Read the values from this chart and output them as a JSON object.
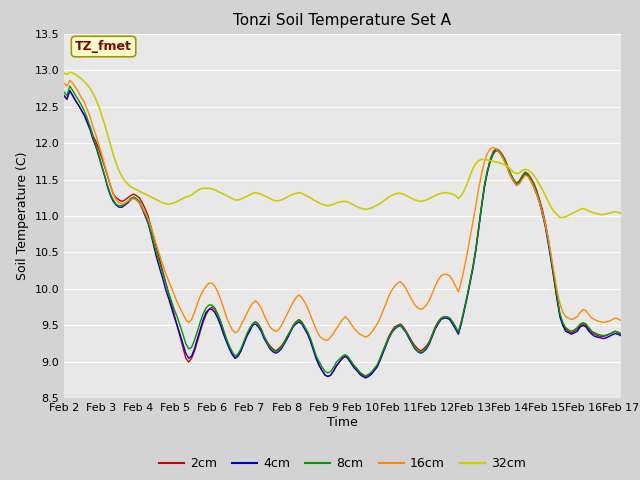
{
  "title": "Tonzi Soil Temperature Set A",
  "xlabel": "Time",
  "ylabel": "Soil Temperature (C)",
  "annotation_text": "TZ_fmet",
  "annotation_color": "#8B0000",
  "annotation_bg": "#FFFFCC",
  "annotation_border": "#999900",
  "ylim": [
    8.5,
    13.5
  ],
  "yticks": [
    8.5,
    9.0,
    9.5,
    10.0,
    10.5,
    11.0,
    11.5,
    12.0,
    12.5,
    13.0,
    13.5
  ],
  "legend_labels": [
    "2cm",
    "4cm",
    "8cm",
    "16cm",
    "32cm"
  ],
  "line_colors": [
    "#CC0000",
    "#0000CC",
    "#009900",
    "#FF8800",
    "#CCCC00"
  ],
  "line_widths": [
    1.0,
    1.0,
    1.0,
    1.0,
    1.2
  ],
  "xtick_labels": [
    "Feb 2",
    "Feb 3",
    "Feb 4",
    "Feb 5",
    "Feb 6",
    "Feb 7",
    "Feb 8",
    "Feb 9",
    "Feb 10",
    "Feb 11",
    "Feb 12",
    "Feb 13",
    "Feb 14",
    "Feb 15",
    "Feb 16",
    "Feb 17"
  ],
  "fig_bg": "#D3D3D3",
  "plot_bg": "#E8E8E8",
  "grid_color": "#FFFFFF",
  "data_2cm": [
    12.65,
    12.6,
    12.72,
    12.65,
    12.58,
    12.52,
    12.45,
    12.38,
    12.3,
    12.22,
    12.1,
    12.02,
    11.92,
    11.8,
    11.68,
    11.55,
    11.42,
    11.3,
    11.25,
    11.22,
    11.2,
    11.22,
    11.25,
    11.28,
    11.3,
    11.28,
    11.25,
    11.18,
    11.1,
    11.0,
    10.85,
    10.7,
    10.55,
    10.4,
    10.25,
    10.1,
    9.95,
    9.8,
    9.65,
    9.5,
    9.35,
    9.2,
    9.05,
    9.0,
    9.05,
    9.15,
    9.28,
    9.42,
    9.55,
    9.65,
    9.72,
    9.75,
    9.72,
    9.65,
    9.55,
    9.42,
    9.3,
    9.2,
    9.12,
    9.05,
    9.08,
    9.15,
    9.25,
    9.35,
    9.45,
    9.52,
    9.55,
    9.52,
    9.45,
    9.35,
    9.28,
    9.22,
    9.18,
    9.15,
    9.18,
    9.22,
    9.28,
    9.35,
    9.42,
    9.5,
    9.55,
    9.58,
    9.55,
    9.48,
    9.4,
    9.3,
    9.18,
    9.05,
    8.95,
    8.88,
    8.82,
    8.8,
    8.82,
    8.88,
    8.95,
    9.0,
    9.05,
    9.08,
    9.05,
    9.0,
    8.95,
    8.9,
    8.85,
    8.82,
    8.8,
    8.82,
    8.85,
    8.9,
    8.95,
    9.05,
    9.15,
    9.25,
    9.35,
    9.42,
    9.48,
    9.5,
    9.52,
    9.48,
    9.42,
    9.35,
    9.28,
    9.22,
    9.18,
    9.15,
    9.18,
    9.22,
    9.28,
    9.38,
    9.48,
    9.55,
    9.6,
    9.62,
    9.62,
    9.6,
    9.55,
    9.48,
    9.4,
    9.55,
    9.72,
    9.9,
    10.1,
    10.3,
    10.55,
    10.85,
    11.15,
    11.42,
    11.62,
    11.78,
    11.88,
    11.92,
    11.9,
    11.85,
    11.78,
    11.68,
    11.58,
    11.5,
    11.45,
    11.48,
    11.55,
    11.6,
    11.58,
    11.52,
    11.45,
    11.35,
    11.22,
    11.08,
    10.9,
    10.68,
    10.42,
    10.15,
    9.88,
    9.65,
    9.52,
    9.45,
    9.42,
    9.4,
    9.42,
    9.45,
    9.5,
    9.52,
    9.5,
    9.45,
    9.4,
    9.38,
    9.36,
    9.35,
    9.35,
    9.36,
    9.38,
    9.4,
    9.42,
    9.4,
    9.38
  ],
  "data_4cm": [
    12.65,
    12.6,
    12.72,
    12.65,
    12.58,
    12.52,
    12.45,
    12.38,
    12.28,
    12.18,
    12.05,
    11.95,
    11.82,
    11.68,
    11.55,
    11.4,
    11.28,
    11.2,
    11.15,
    11.12,
    11.12,
    11.15,
    11.18,
    11.22,
    11.25,
    11.22,
    11.18,
    11.1,
    11.0,
    10.9,
    10.75,
    10.58,
    10.42,
    10.28,
    10.15,
    10.0,
    9.88,
    9.75,
    9.62,
    9.5,
    9.38,
    9.25,
    9.12,
    9.05,
    9.08,
    9.18,
    9.32,
    9.45,
    9.58,
    9.68,
    9.72,
    9.72,
    9.68,
    9.6,
    9.5,
    9.38,
    9.28,
    9.18,
    9.1,
    9.05,
    9.08,
    9.15,
    9.25,
    9.35,
    9.42,
    9.5,
    9.52,
    9.48,
    9.42,
    9.32,
    9.25,
    9.18,
    9.14,
    9.12,
    9.14,
    9.18,
    9.25,
    9.32,
    9.4,
    9.48,
    9.52,
    9.55,
    9.52,
    9.45,
    9.38,
    9.28,
    9.16,
    9.04,
    8.95,
    8.88,
    8.82,
    8.8,
    8.82,
    8.88,
    8.95,
    9.0,
    9.05,
    9.08,
    9.04,
    8.98,
    8.92,
    8.88,
    8.83,
    8.8,
    8.78,
    8.8,
    8.83,
    8.88,
    8.93,
    9.02,
    9.12,
    9.22,
    9.32,
    9.4,
    9.45,
    9.48,
    9.5,
    9.45,
    9.4,
    9.32,
    9.25,
    9.18,
    9.14,
    9.12,
    9.14,
    9.18,
    9.25,
    9.35,
    9.45,
    9.52,
    9.58,
    9.6,
    9.6,
    9.58,
    9.52,
    9.45,
    9.38,
    9.52,
    9.7,
    9.88,
    10.08,
    10.28,
    10.52,
    10.82,
    11.12,
    11.4,
    11.6,
    11.75,
    11.85,
    11.9,
    11.88,
    11.82,
    11.75,
    11.65,
    11.55,
    11.48,
    11.42,
    11.45,
    11.52,
    11.58,
    11.55,
    11.48,
    11.4,
    11.3,
    11.18,
    11.02,
    10.85,
    10.62,
    10.38,
    10.12,
    9.86,
    9.62,
    9.5,
    9.42,
    9.4,
    9.38,
    9.4,
    9.42,
    9.48,
    9.5,
    9.48,
    9.42,
    9.38,
    9.35,
    9.34,
    9.33,
    9.32,
    9.33,
    9.35,
    9.37,
    9.39,
    9.38,
    9.36
  ],
  "data_8cm": [
    12.7,
    12.65,
    12.78,
    12.72,
    12.65,
    12.59,
    12.52,
    12.44,
    12.34,
    12.22,
    12.08,
    11.97,
    11.84,
    11.7,
    11.56,
    11.42,
    11.3,
    11.22,
    11.16,
    11.14,
    11.14,
    11.16,
    11.2,
    11.24,
    11.26,
    11.24,
    11.2,
    11.12,
    11.02,
    10.92,
    10.78,
    10.62,
    10.48,
    10.35,
    10.22,
    10.08,
    9.96,
    9.84,
    9.72,
    9.62,
    9.5,
    9.38,
    9.25,
    9.18,
    9.2,
    9.3,
    9.42,
    9.55,
    9.66,
    9.74,
    9.78,
    9.78,
    9.74,
    9.66,
    9.56,
    9.44,
    9.32,
    9.22,
    9.14,
    9.08,
    9.11,
    9.18,
    9.28,
    9.38,
    9.46,
    9.52,
    9.55,
    9.51,
    9.45,
    9.35,
    9.27,
    9.2,
    9.16,
    9.14,
    9.16,
    9.2,
    9.27,
    9.35,
    9.42,
    9.49,
    9.54,
    9.57,
    9.54,
    9.48,
    9.41,
    9.32,
    9.2,
    9.08,
    9.0,
    8.93,
    8.87,
    8.85,
    8.87,
    8.93,
    9.0,
    9.04,
    9.08,
    9.1,
    9.07,
    9.01,
    8.95,
    8.91,
    8.86,
    8.83,
    8.81,
    8.83,
    8.86,
    8.91,
    8.96,
    9.05,
    9.15,
    9.24,
    9.33,
    9.4,
    9.46,
    9.49,
    9.51,
    9.46,
    9.41,
    9.34,
    9.26,
    9.19,
    9.15,
    9.13,
    9.15,
    9.2,
    9.27,
    9.37,
    9.47,
    9.54,
    9.59,
    9.62,
    9.62,
    9.6,
    9.55,
    9.48,
    9.41,
    9.55,
    9.72,
    9.9,
    10.1,
    10.3,
    10.54,
    10.83,
    11.14,
    11.43,
    11.62,
    11.76,
    11.86,
    11.9,
    11.89,
    11.84,
    11.77,
    11.67,
    11.58,
    11.5,
    11.45,
    11.47,
    11.54,
    11.59,
    11.57,
    11.5,
    11.43,
    11.33,
    11.2,
    11.05,
    10.88,
    10.66,
    10.42,
    10.16,
    9.9,
    9.66,
    9.54,
    9.47,
    9.44,
    9.42,
    9.44,
    9.47,
    9.52,
    9.54,
    9.52,
    9.47,
    9.42,
    9.4,
    9.38,
    9.37,
    9.36,
    9.37,
    9.38,
    9.4,
    9.42,
    9.41,
    9.39
  ],
  "data_16cm": [
    12.82,
    12.78,
    12.86,
    12.82,
    12.76,
    12.7,
    12.62,
    12.56,
    12.46,
    12.36,
    12.22,
    12.11,
    11.98,
    11.84,
    11.7,
    11.56,
    11.42,
    11.3,
    11.22,
    11.18,
    11.16,
    11.18,
    11.2,
    11.22,
    11.24,
    11.22,
    11.18,
    11.12,
    11.04,
    10.96,
    10.85,
    10.72,
    10.58,
    10.46,
    10.34,
    10.22,
    10.12,
    10.02,
    9.92,
    9.82,
    9.74,
    9.66,
    9.58,
    9.54,
    9.58,
    9.68,
    9.8,
    9.9,
    9.98,
    10.04,
    10.08,
    10.08,
    10.04,
    9.96,
    9.86,
    9.74,
    9.62,
    9.52,
    9.44,
    9.4,
    9.42,
    9.5,
    9.58,
    9.66,
    9.74,
    9.8,
    9.84,
    9.8,
    9.74,
    9.64,
    9.56,
    9.48,
    9.44,
    9.42,
    9.44,
    9.5,
    9.58,
    9.66,
    9.74,
    9.82,
    9.88,
    9.92,
    9.88,
    9.82,
    9.74,
    9.64,
    9.54,
    9.44,
    9.36,
    9.32,
    9.3,
    9.3,
    9.34,
    9.4,
    9.46,
    9.52,
    9.58,
    9.62,
    9.58,
    9.52,
    9.46,
    9.42,
    9.38,
    9.36,
    9.34,
    9.36,
    9.4,
    9.46,
    9.52,
    9.6,
    9.7,
    9.8,
    9.9,
    9.98,
    10.04,
    10.08,
    10.1,
    10.06,
    10.0,
    9.92,
    9.85,
    9.78,
    9.74,
    9.72,
    9.74,
    9.78,
    9.85,
    9.94,
    10.04,
    10.12,
    10.18,
    10.2,
    10.2,
    10.18,
    10.12,
    10.04,
    9.96,
    10.1,
    10.28,
    10.48,
    10.7,
    10.92,
    11.14,
    11.38,
    11.58,
    11.75,
    11.86,
    11.92,
    11.94,
    11.92,
    11.88,
    11.82,
    11.74,
    11.64,
    11.55,
    11.48,
    11.42,
    11.44,
    11.5,
    11.56,
    11.54,
    11.48,
    11.4,
    11.3,
    11.18,
    11.04,
    10.88,
    10.68,
    10.46,
    10.22,
    9.98,
    9.8,
    9.68,
    9.62,
    9.6,
    9.58,
    9.6,
    9.62,
    9.68,
    9.72,
    9.7,
    9.65,
    9.6,
    9.58,
    9.56,
    9.55,
    9.54,
    9.55,
    9.56,
    9.58,
    9.6,
    9.59,
    9.57
  ],
  "data_32cm": [
    12.96,
    12.94,
    12.97,
    12.96,
    12.94,
    12.91,
    12.88,
    12.84,
    12.8,
    12.75,
    12.68,
    12.6,
    12.5,
    12.38,
    12.26,
    12.12,
    11.98,
    11.84,
    11.72,
    11.62,
    11.54,
    11.48,
    11.44,
    11.4,
    11.38,
    11.36,
    11.34,
    11.32,
    11.3,
    11.28,
    11.26,
    11.24,
    11.22,
    11.2,
    11.18,
    11.17,
    11.16,
    11.17,
    11.18,
    11.2,
    11.22,
    11.24,
    11.26,
    11.27,
    11.29,
    11.32,
    11.35,
    11.37,
    11.38,
    11.38,
    11.38,
    11.37,
    11.36,
    11.34,
    11.32,
    11.3,
    11.28,
    11.26,
    11.24,
    11.22,
    11.22,
    11.23,
    11.25,
    11.27,
    11.29,
    11.31,
    11.32,
    11.31,
    11.3,
    11.28,
    11.26,
    11.24,
    11.22,
    11.21,
    11.21,
    11.22,
    11.24,
    11.26,
    11.28,
    11.3,
    11.31,
    11.32,
    11.31,
    11.29,
    11.27,
    11.25,
    11.22,
    11.2,
    11.18,
    11.16,
    11.15,
    11.14,
    11.15,
    11.16,
    11.18,
    11.19,
    11.2,
    11.2,
    11.19,
    11.17,
    11.15,
    11.13,
    11.11,
    11.1,
    11.09,
    11.1,
    11.11,
    11.13,
    11.15,
    11.17,
    11.2,
    11.23,
    11.26,
    11.28,
    11.3,
    11.31,
    11.31,
    11.3,
    11.28,
    11.26,
    11.24,
    11.22,
    11.21,
    11.2,
    11.21,
    11.22,
    11.24,
    11.26,
    11.28,
    11.3,
    11.31,
    11.32,
    11.32,
    11.31,
    11.3,
    11.28,
    11.24,
    11.28,
    11.35,
    11.44,
    11.55,
    11.65,
    11.72,
    11.76,
    11.78,
    11.77,
    11.77,
    11.76,
    11.75,
    11.74,
    11.73,
    11.72,
    11.7,
    11.68,
    11.64,
    11.6,
    11.58,
    11.59,
    11.62,
    11.64,
    11.63,
    11.6,
    11.56,
    11.5,
    11.43,
    11.36,
    11.28,
    11.2,
    11.12,
    11.06,
    11.02,
    10.98,
    10.98,
    10.99,
    11.01,
    11.03,
    11.05,
    11.07,
    11.09,
    11.1,
    11.09,
    11.07,
    11.05,
    11.04,
    11.03,
    11.02,
    11.02,
    11.03,
    11.04,
    11.05,
    11.06,
    11.05,
    11.04
  ]
}
